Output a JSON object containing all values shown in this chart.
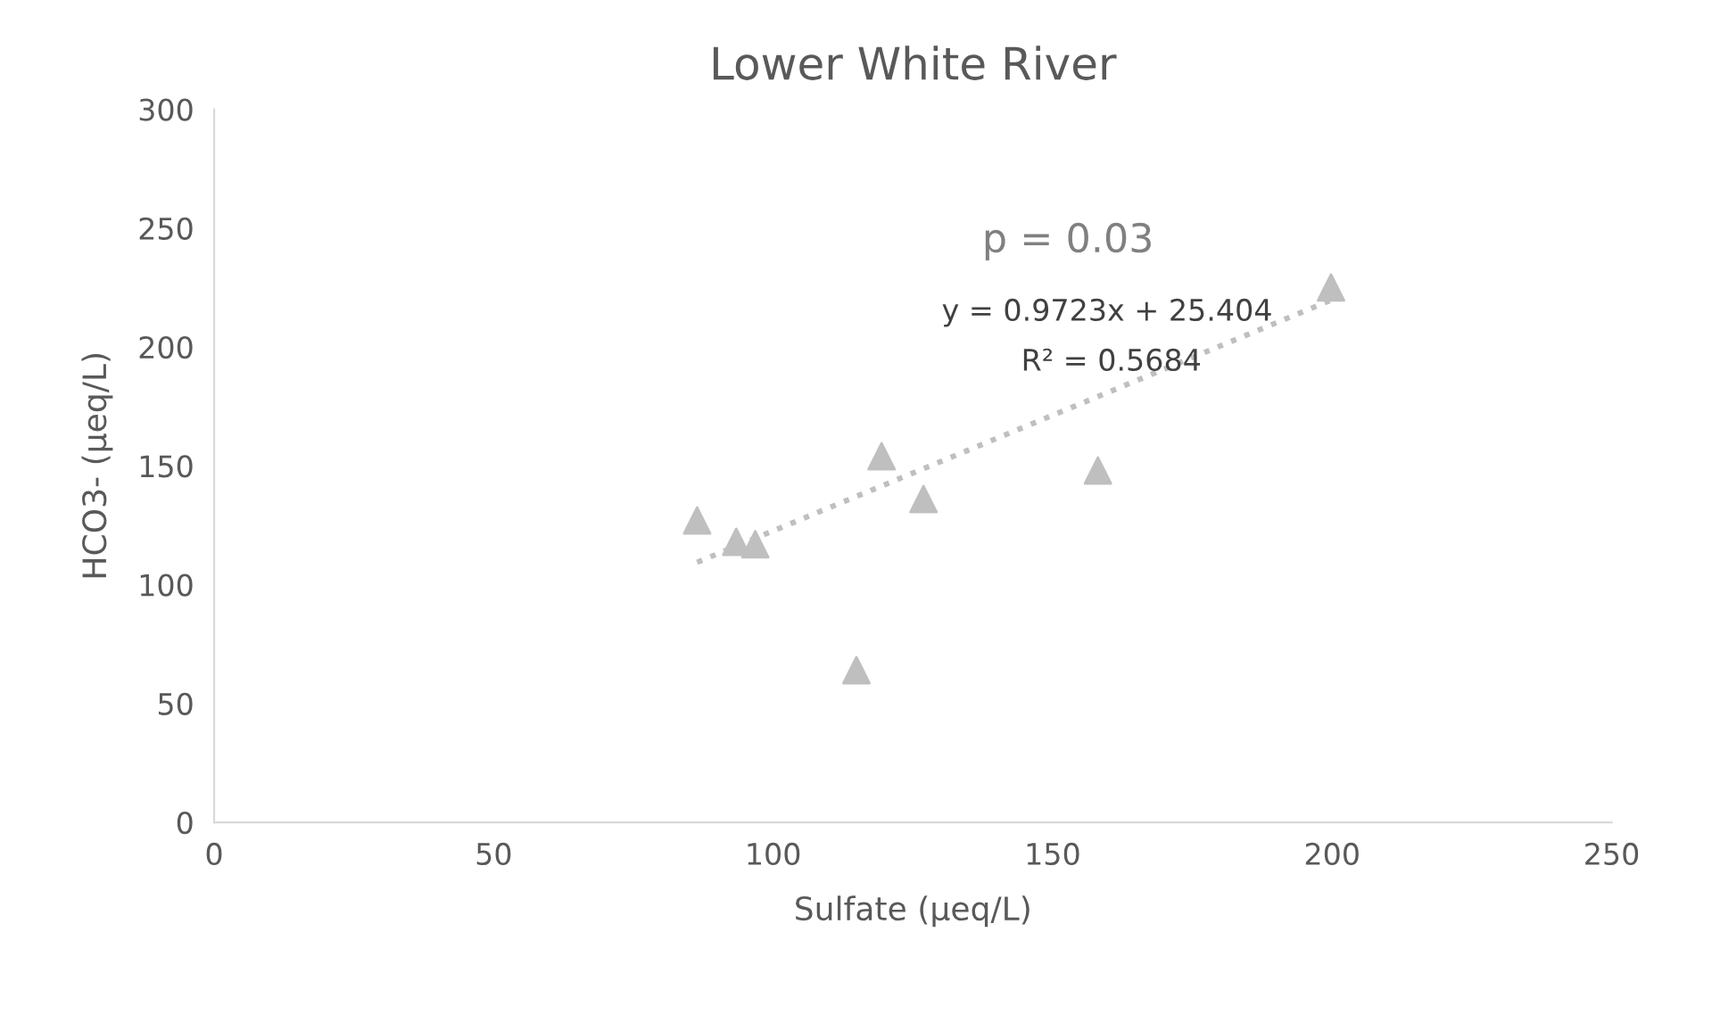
{
  "chart_data": {
    "type": "scatter",
    "title": "Lower White River",
    "xlabel": "Sulfate (μeq/L)",
    "ylabel": "HCO3- (μeq/L)",
    "series": [
      {
        "color": "#bfbfbf",
        "marker": "triangle",
        "x": [
          86.4,
          93.4,
          96.8,
          119.4,
          126.9,
          158.1,
          114.9,
          199.8
        ],
        "values": [
          127,
          118,
          117,
          154,
          136,
          148,
          64,
          225
        ]
      },
      {
        "type": "line",
        "color": "#bfbfbf",
        "line_style": "dotted",
        "marker": "none",
        "x": [
          86.4,
          199.8
        ],
        "values": [
          109.4,
          219.7
        ]
      }
    ],
    "annotations": [
      "p = 0.03",
      "y = 0.9723x + 25.404",
      "R² = 0.5684"
    ],
    "xlim": [
      0,
      250
    ],
    "xticks": [
      0,
      50,
      100,
      150,
      200,
      250
    ],
    "ylim": [
      0,
      300
    ],
    "yticks": [
      0,
      50,
      100,
      150,
      200,
      250,
      300
    ],
    "grid": false,
    "legend": false
  }
}
